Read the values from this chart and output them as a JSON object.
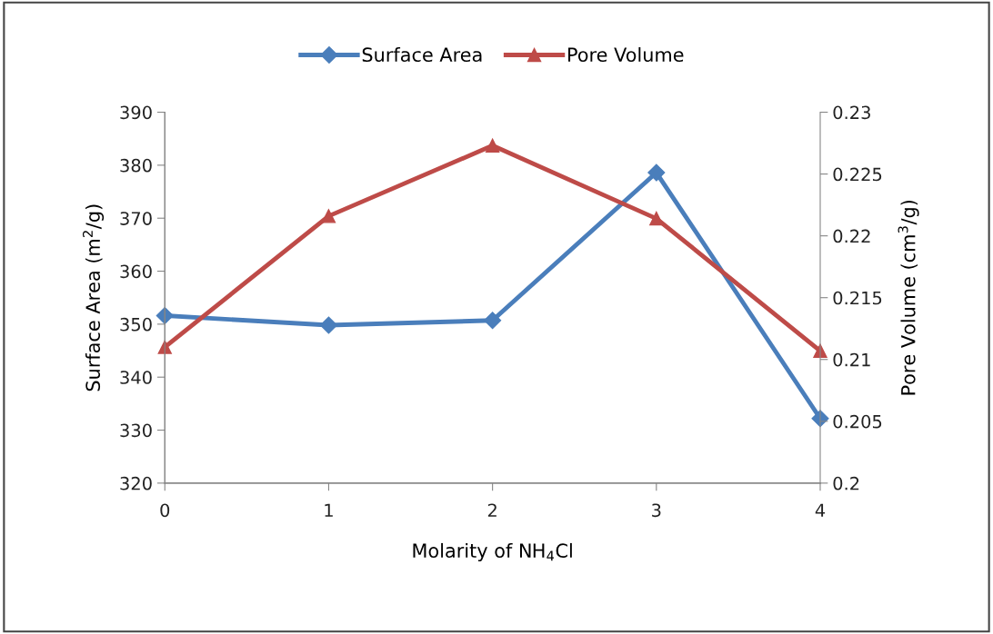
{
  "chart_data": {
    "type": "line",
    "xlabel": "Molarity of NH$_{4}$Cl",
    "ylabel": "Surface Area (m$^{2}$/g)",
    "y2label": "Pore Volume (cm$^{3}$/g)",
    "categories": [
      "0",
      "1",
      "2",
      "3",
      "4"
    ],
    "series": [
      {
        "name": "Surface Area",
        "color": "#4a7ebb",
        "marker": "diamond",
        "values": [
          351.6,
          349.8,
          350.7,
          378.6,
          332.2
        ]
      },
      {
        "name": "Pore Volume",
        "color": "#be4b48",
        "marker": "triangle",
        "axis": "y2",
        "values": [
          0.211,
          0.2216,
          0.2273,
          0.2214,
          0.2107
        ]
      }
    ],
    "ylim": [
      320,
      390
    ],
    "yticks": [
      320,
      330,
      340,
      350,
      360,
      370,
      380,
      390
    ],
    "y2lim": [
      0.2,
      0.23
    ],
    "y2ticks": [
      0.2,
      0.205,
      0.21,
      0.215,
      0.22,
      0.225,
      0.23
    ],
    "legend": "top",
    "grid": false
  }
}
